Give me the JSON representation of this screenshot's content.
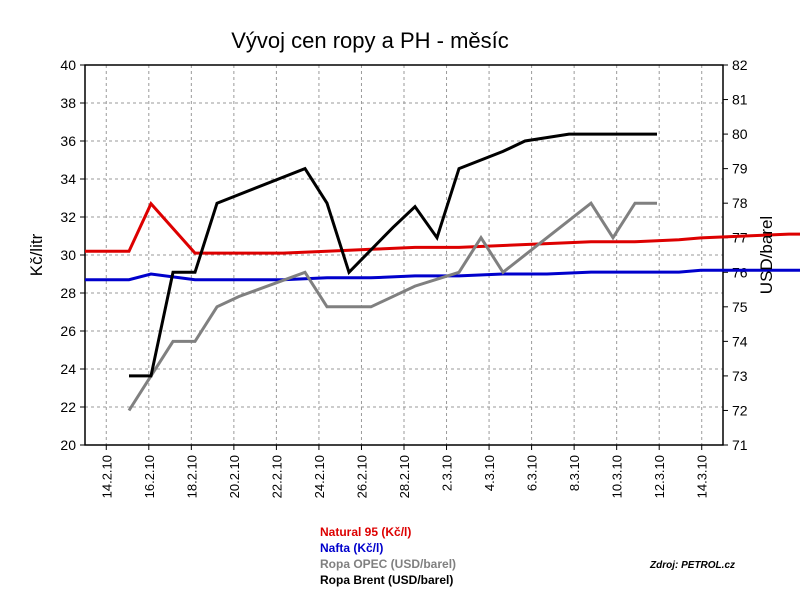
{
  "chart_data": {
    "type": "line",
    "title": "Vývoj cen ropy a PH - měsíc",
    "ylabel_left": "Kč/litr",
    "ylabel_right": "USD/barel",
    "ylim_left": [
      20,
      40
    ],
    "ylim_right": [
      71,
      82
    ],
    "yticks_left": [
      "20",
      "22",
      "24",
      "26",
      "28",
      "30",
      "32",
      "34",
      "36",
      "38",
      "40"
    ],
    "yticks_right": [
      "71",
      "72",
      "73",
      "74",
      "75",
      "76",
      "77",
      "78",
      "79",
      "80",
      "81",
      "82"
    ],
    "x_tick_labels": [
      "14.2.10",
      "16.2.10",
      "18.2.10",
      "20.2.10",
      "22.2.10",
      "24.2.10",
      "26.2.10",
      "28.2.10",
      "2.3.10",
      "4.3.10",
      "6.3.10",
      "8.3.10",
      "10.3.10",
      "12.3.10",
      "14.3.10"
    ],
    "x_index_range": [
      0,
      29
    ],
    "grid": true,
    "legend_position": "bottom-center",
    "series": [
      {
        "name": "Natural 95 (Kč/l)",
        "axis": "left",
        "color": "#dd0000",
        "points": [
          [
            0,
            30.2
          ],
          [
            2,
            30.2
          ],
          [
            3,
            32.7
          ],
          [
            5,
            30.1
          ],
          [
            7,
            30.1
          ],
          [
            9,
            30.1
          ],
          [
            11,
            30.2
          ],
          [
            13,
            30.3
          ],
          [
            15,
            30.4
          ],
          [
            17,
            30.4
          ],
          [
            19,
            30.5
          ],
          [
            21,
            30.6
          ],
          [
            23,
            30.7
          ],
          [
            25,
            30.7
          ],
          [
            27,
            30.8
          ],
          [
            28,
            30.9
          ],
          [
            30,
            31.0
          ],
          [
            32,
            31.1
          ],
          [
            34,
            31.1
          ]
        ]
      },
      {
        "name": "Nafta (Kč/l)",
        "axis": "left",
        "color": "#0000cc",
        "points": [
          [
            0,
            28.7
          ],
          [
            2,
            28.7
          ],
          [
            3,
            29.0
          ],
          [
            5,
            28.7
          ],
          [
            7,
            28.7
          ],
          [
            9,
            28.7
          ],
          [
            11,
            28.8
          ],
          [
            13,
            28.8
          ],
          [
            15,
            28.9
          ],
          [
            17,
            28.9
          ],
          [
            19,
            29.0
          ],
          [
            21,
            29.0
          ],
          [
            23,
            29.1
          ],
          [
            25,
            29.1
          ],
          [
            27,
            29.1
          ],
          [
            28,
            29.2
          ],
          [
            30,
            29.2
          ],
          [
            32,
            29.2
          ],
          [
            34,
            29.2
          ]
        ]
      },
      {
        "name": "Ropa OPEC (USD/barel)",
        "axis": "right",
        "color": "#808080",
        "points": [
          [
            2,
            72
          ],
          [
            3,
            73
          ],
          [
            4,
            74
          ],
          [
            5,
            74
          ],
          [
            6,
            75
          ],
          [
            7,
            75.3
          ],
          [
            10,
            76
          ],
          [
            11,
            75
          ],
          [
            13,
            75
          ],
          [
            15,
            75.6
          ],
          [
            17,
            76
          ],
          [
            18,
            77
          ],
          [
            19,
            76
          ],
          [
            21,
            77
          ],
          [
            23,
            78
          ],
          [
            24,
            77
          ],
          [
            25,
            78
          ],
          [
            26,
            78
          ]
        ]
      },
      {
        "name": "Ropa Brent (USD/barel)",
        "axis": "right",
        "color": "#000000",
        "points": [
          [
            2,
            73
          ],
          [
            3,
            73
          ],
          [
            4,
            76
          ],
          [
            5,
            76
          ],
          [
            6,
            78
          ],
          [
            10,
            79
          ],
          [
            11,
            78
          ],
          [
            12,
            76
          ],
          [
            14,
            77.3
          ],
          [
            15,
            77.9
          ],
          [
            16,
            77
          ],
          [
            17,
            79
          ],
          [
            19,
            79.5
          ],
          [
            20,
            79.8
          ],
          [
            22,
            80
          ],
          [
            26,
            80
          ]
        ]
      }
    ]
  },
  "legend": [
    {
      "label": "Natural 95 (Kč/l)",
      "color": "#dd0000"
    },
    {
      "label": "Nafta (Kč/l)",
      "color": "#0000cc"
    },
    {
      "label": "Ropa OPEC (USD/barel)",
      "color": "#808080"
    },
    {
      "label": "Ropa Brent (USD/barel)",
      "color": "#000000"
    }
  ],
  "source": "Zdroj: PETROL.cz"
}
